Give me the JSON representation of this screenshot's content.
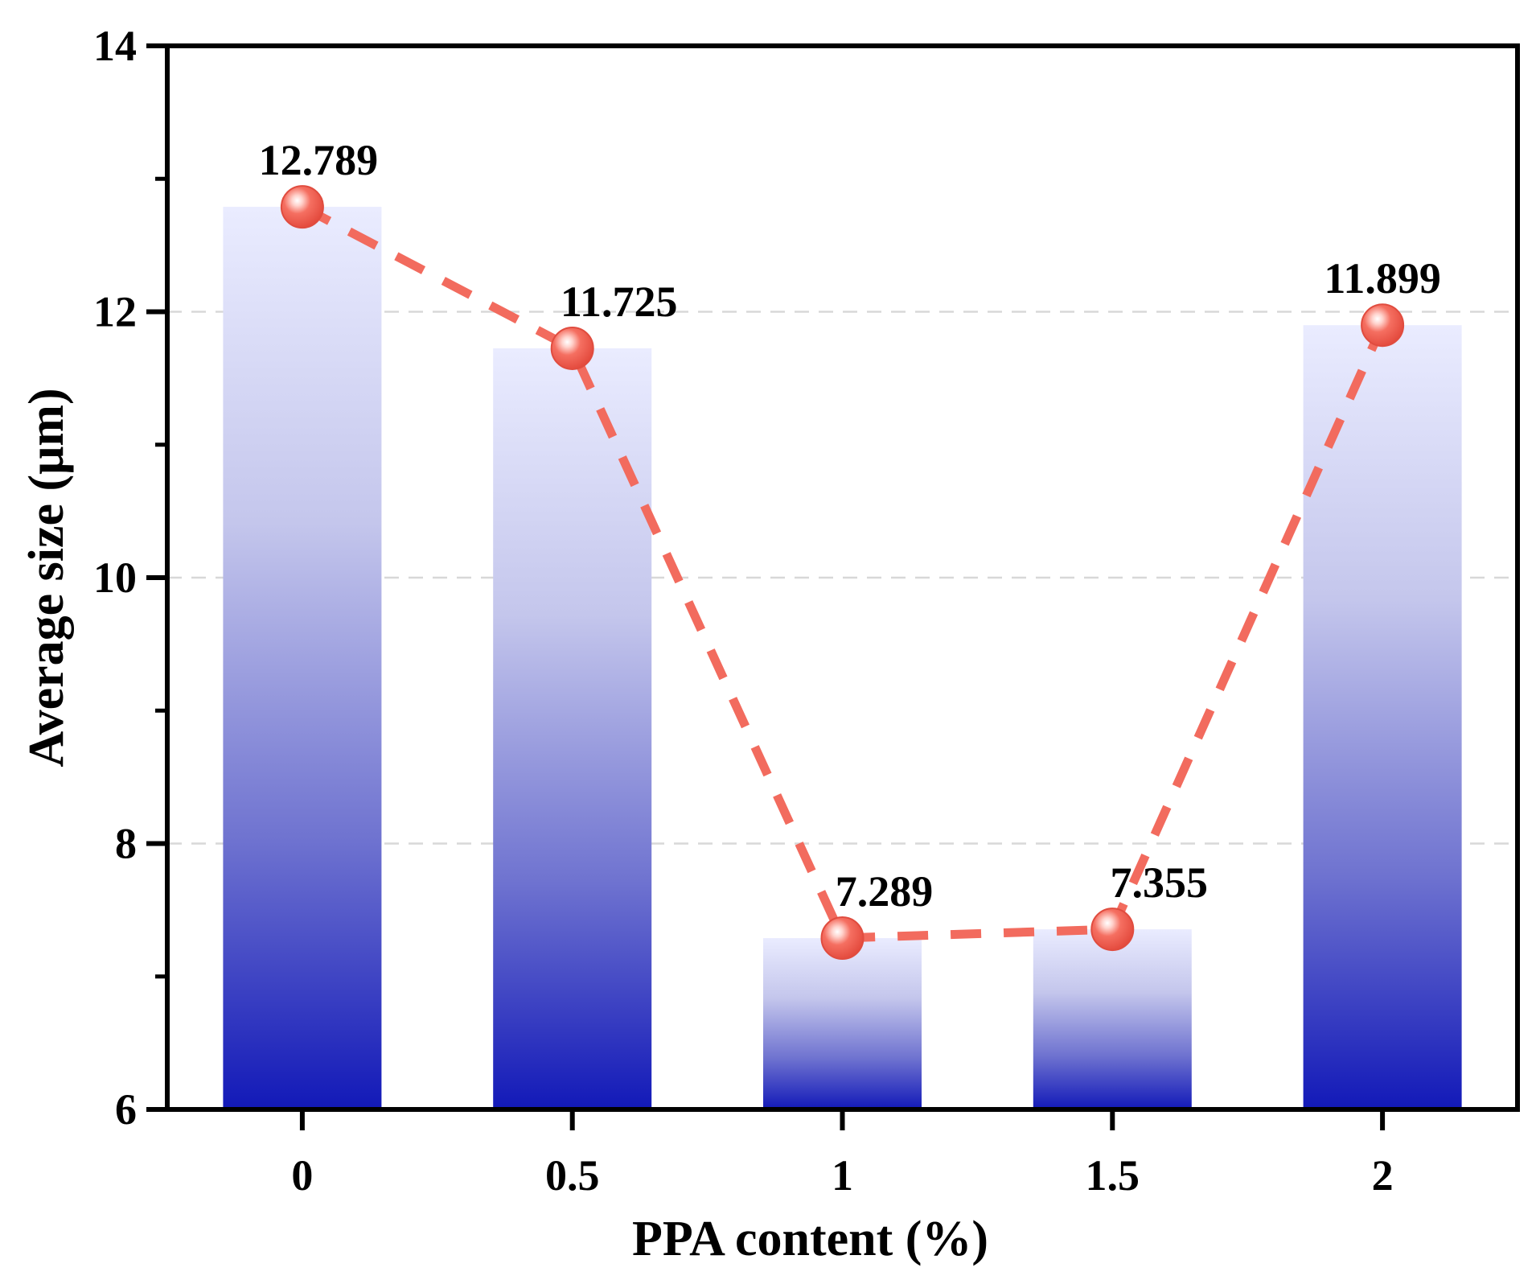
{
  "chart_data": {
    "type": "bar",
    "categories": [
      "0",
      "0.5",
      "1",
      "1.5",
      "2"
    ],
    "series": [
      {
        "name": "Average size",
        "values": [
          12.789,
          11.725,
          7.289,
          7.355,
          11.899
        ]
      }
    ],
    "data_labels": [
      "12.789",
      "11.725",
      "7.289",
      "7.355",
      "11.899"
    ],
    "overlay": "dashed line with markers",
    "title": "",
    "xlabel": "PPA content (%)",
    "ylabel": "Average size (μm)",
    "ylim": [
      6,
      14
    ],
    "yticks": [
      "6",
      "8",
      "10",
      "12",
      "14"
    ],
    "grid": "horizontal dashed",
    "colors": {
      "bar_top": "#eaecff",
      "bar_bottom": "#1219b8",
      "line": "#f26b5e",
      "marker": "#f05a4c"
    }
  }
}
